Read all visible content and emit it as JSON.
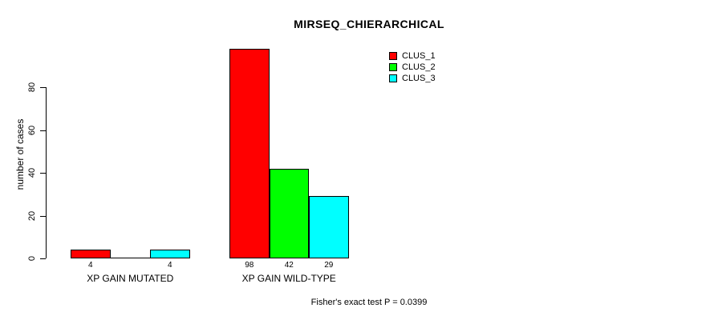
{
  "chart_data": {
    "type": "bar",
    "title": "MIRSEQ_CHIERARCHICAL",
    "ylabel": "number of cases",
    "xlabel": "",
    "ylim": [
      0,
      98
    ],
    "yticks": [
      0,
      20,
      40,
      60,
      80
    ],
    "grid": false,
    "legend_position": "top-right",
    "categories": [
      "XP GAIN MUTATED",
      "XP GAIN WILD-TYPE"
    ],
    "series": [
      {
        "name": "CLUS_1",
        "color": "#FF0000",
        "values": [
          4,
          98
        ]
      },
      {
        "name": "CLUS_2",
        "color": "#00FF00",
        "values": [
          0,
          42
        ]
      },
      {
        "name": "CLUS_3",
        "color": "#00FFFF",
        "values": [
          4,
          29
        ]
      }
    ],
    "bar_labels": [
      [
        "4",
        null,
        "4"
      ],
      [
        "98",
        "42",
        "29"
      ]
    ],
    "annotation": "Fisher's exact test P = 0.0399"
  }
}
